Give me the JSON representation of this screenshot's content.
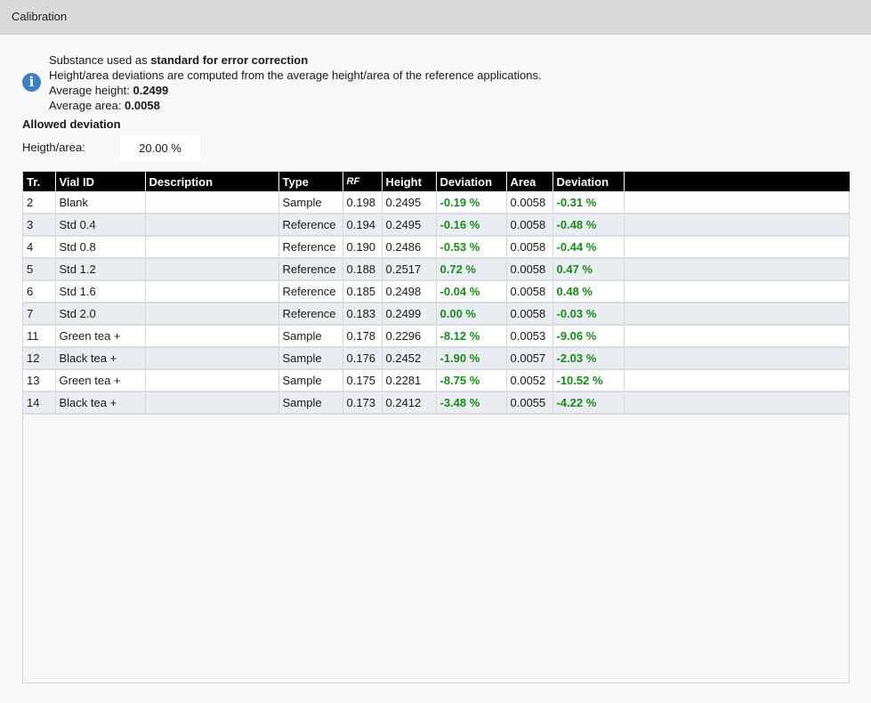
{
  "window": {
    "title": "Calibration"
  },
  "info": {
    "line1_prefix": "Substance used as ",
    "line1_bold": "standard for error correction",
    "line2": "Height/area deviations are computed from the average height/area of the reference applications.",
    "avg_height_label": "Average height: ",
    "avg_height_value": "0.2499",
    "avg_area_label": "Average area: ",
    "avg_area_value": "0.0058"
  },
  "allowed": {
    "title": "Allowed deviation",
    "label": "Heigth/area:",
    "value": "20.00 %"
  },
  "table": {
    "headers": [
      "Tr.",
      "Vial ID",
      "Description",
      "Type",
      "RF",
      "Height",
      "Deviation",
      "Area",
      "Deviation",
      ""
    ],
    "rows": [
      {
        "tr": "2",
        "vial": "Blank",
        "desc": "",
        "type": "Sample",
        "rf": "0.198",
        "height": "0.2495",
        "hdev": "-0.19 %",
        "area": "0.0058",
        "adev": "-0.31 %"
      },
      {
        "tr": "3",
        "vial": "Std 0.4",
        "desc": "",
        "type": "Reference",
        "rf": "0.194",
        "height": "0.2495",
        "hdev": "-0.16 %",
        "area": "0.0058",
        "adev": "-0.48 %"
      },
      {
        "tr": "4",
        "vial": "Std 0.8",
        "desc": "",
        "type": "Reference",
        "rf": "0.190",
        "height": "0.2486",
        "hdev": "-0.53 %",
        "area": "0.0058",
        "adev": "-0.44 %"
      },
      {
        "tr": "5",
        "vial": "Std 1.2",
        "desc": "",
        "type": "Reference",
        "rf": "0.188",
        "height": "0.2517",
        "hdev": "0.72 %",
        "area": "0.0058",
        "adev": "0.47 %"
      },
      {
        "tr": "6",
        "vial": "Std 1.6",
        "desc": "",
        "type": "Reference",
        "rf": "0.185",
        "height": "0.2498",
        "hdev": "-0.04 %",
        "area": "0.0058",
        "adev": "0.48 %"
      },
      {
        "tr": "7",
        "vial": "Std 2.0",
        "desc": "",
        "type": "Reference",
        "rf": "0.183",
        "height": "0.2499",
        "hdev": "0.00 %",
        "area": "0.0058",
        "adev": "-0.03 %"
      },
      {
        "tr": "11",
        "vial": "Green tea +",
        "desc": "",
        "type": "Sample",
        "rf": "0.178",
        "height": "0.2296",
        "hdev": "-8.12 %",
        "area": "0.0053",
        "adev": "-9.06 %"
      },
      {
        "tr": "12",
        "vial": "Black tea +",
        "desc": "",
        "type": "Sample",
        "rf": "0.176",
        "height": "0.2452",
        "hdev": "-1.90 %",
        "area": "0.0057",
        "adev": "-2.03 %"
      },
      {
        "tr": "13",
        "vial": "Green tea +",
        "desc": "",
        "type": "Sample",
        "rf": "0.175",
        "height": "0.2281",
        "hdev": "-8.75 %",
        "area": "0.0052",
        "adev": "-10.52 %"
      },
      {
        "tr": "14",
        "vial": "Black tea +",
        "desc": "",
        "type": "Sample",
        "rf": "0.173",
        "height": "0.2412",
        "hdev": "-3.48 %",
        "area": "0.0055",
        "adev": "-4.22 %"
      }
    ]
  },
  "colors": {
    "deviation_text": "#1a8a1a",
    "header_bg": "#000000",
    "info_icon": "#3d7fc0"
  },
  "icons": {
    "info": "info-icon"
  }
}
